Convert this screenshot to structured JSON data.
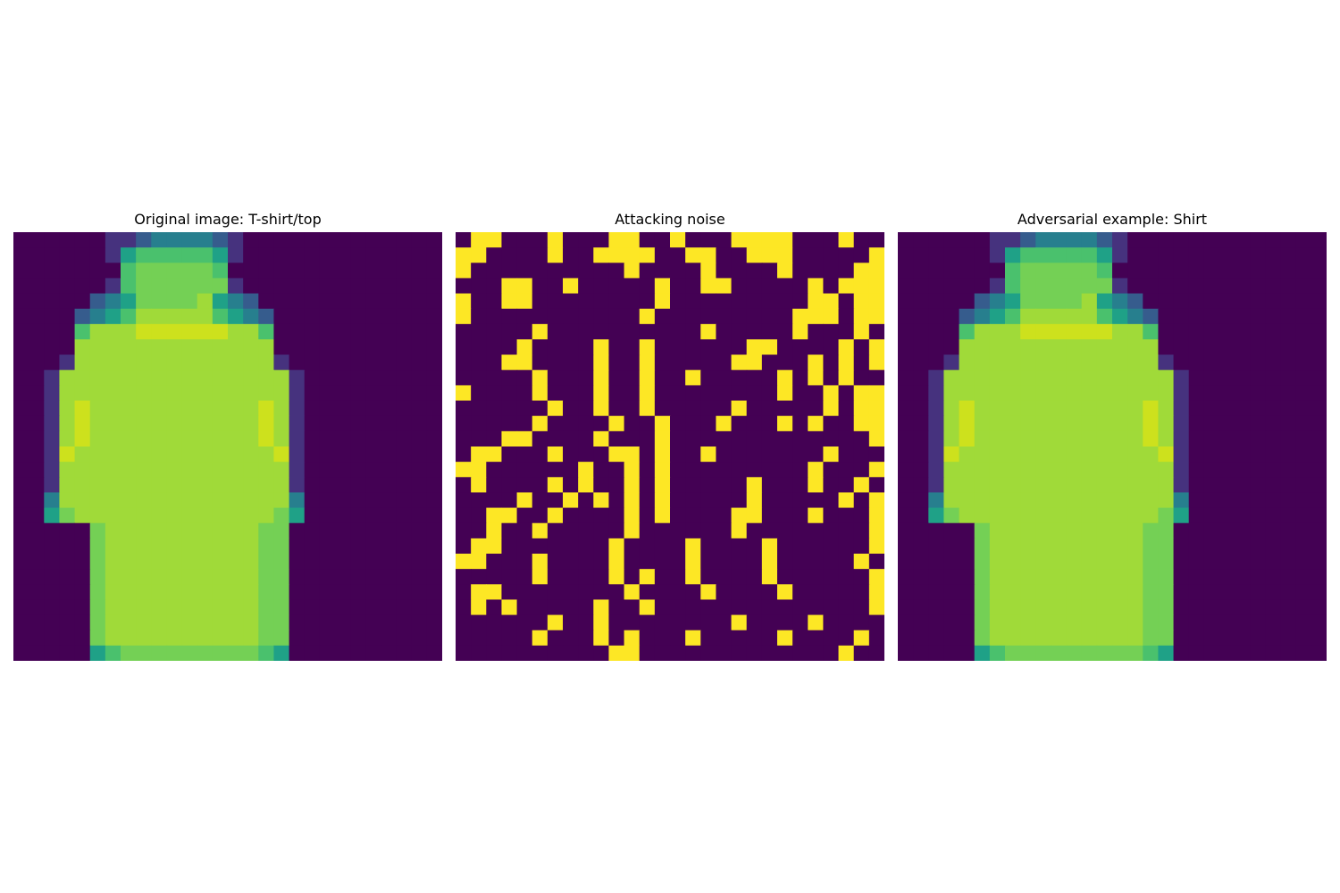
{
  "chart_data": [
    {
      "type": "heatmap",
      "title": "Original image: T-shirt/top",
      "colormap": "viridis",
      "vmin": 0,
      "vmax": 9,
      "rows": [
        "0000001123333210000000000000",
        "0000001455555410000000000000",
        "0000000566666500000000000000",
        "0000001566666610000000000000",
        "0000023466667432000000000000",
        "0000234577777543200000000000",
        "0000577788888877500000000000",
        "0000777777777777700000000000",
        "0001777777777777710000000000",
        "0017777777777777771000000000",
        "0017777777777777771000000000",
        "0017877777777777871000000000",
        "0017877777777777871000000000",
        "0017877777777777871000000000",
        "0018777777777777781000000000",
        "0017777777777777771000000000",
        "0017777777777777771000000000",
        "0037777777777777773000000000",
        "0046777777777777764000000000",
        "0000067777777777660000000000",
        "0000067777777777660000000000",
        "0000067777777777660000000000",
        "0000067777777777660000000000",
        "0000067777777777660000000000",
        "0000067777777777660000000000",
        "0000067777777777660000000000",
        "0000067777777777660000000000",
        "0000045666666666540000000000"
      ]
    },
    {
      "type": "heatmap",
      "title": "Attacking noise",
      "colormap": "viridis",
      "vmin": 0,
      "vmax": 9,
      "rows": [
        "0990009000990090009999000900",
        "9900009009999009900999000009",
        "9000000000090000900009000099",
        "0009900900000900990000090999",
        "9009900000000900000000099099",
        "9000000000009000000000999099",
        "0000090000000000900000900090",
        "0000900009009000000990000909",
        "0009900009009000009900090909",
        "0000090009009009000009090900",
        "9000090009009000000009009099",
        "0000009009009000009000009099",
        "0000090000900900090009090099",
        "0009900009000900000000000009",
        "0990009000990900900000009000",
        "9900000090090900000000090009",
        "0900009090090900000900090090",
        "0000900909090900000900000909",
        "0099009000090900009900090009",
        "0090090000090000009000000009",
        "0990000000900009000090000009",
        "9900090000900009000090000090",
        "0000090000909009000090000009",
        "0990000000090000900009000009",
        "0909000009009000000000000009",
        "0000009009000000009000090000",
        "0000090009090009000009000090",
        "0000000000990000000000000900"
      ]
    },
    {
      "type": "heatmap",
      "title": "Adversarial example: Shirt",
      "colormap": "viridis",
      "vmin": 0,
      "vmax": 9,
      "rows": [
        "0000001123333210000000000000",
        "0000001455555410000000000000",
        "0000000566666500000000000000",
        "0000001566666610000000000000",
        "0000023466667432000000000000",
        "0000234577777543200000000000",
        "0000577788888877500000000000",
        "0000777777777777700000000000",
        "0001777777777777710000000000",
        "0017777777777777771000000000",
        "0017777777777777771000000000",
        "0017877777777777871000000000",
        "0017877777777777871000000000",
        "0017877777777777871000000000",
        "0018777777777777781000000000",
        "0017777777777777771000000000",
        "0017777777777777771000000000",
        "0037777777777777773000000000",
        "0046777777777777764000000000",
        "0000067777777777660000000000",
        "0000067777777777660000000000",
        "0000067777777777660000000000",
        "0000067777777777660000000000",
        "0000067777777777660000000000",
        "0000067777777777660000000000",
        "0000067777777777660000000000",
        "0000067777777777660000000000",
        "0000045666666666540000000000"
      ]
    }
  ],
  "colors": {
    "viridis": [
      "#440154",
      "#46327e",
      "#365c8d",
      "#277f8e",
      "#1fa187",
      "#4ac16d",
      "#74d055",
      "#a0da39",
      "#cde11d",
      "#fde725"
    ]
  }
}
